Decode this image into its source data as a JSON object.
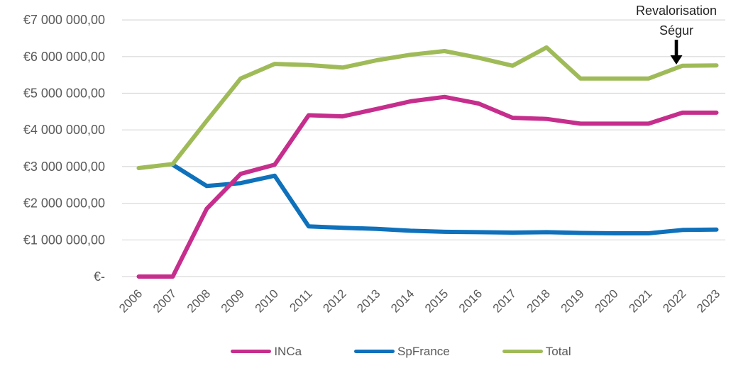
{
  "chart_data": {
    "type": "line",
    "title": "",
    "x_categories": [
      "2006",
      "2007",
      "2008",
      "2009",
      "2010",
      "2011",
      "2012",
      "2013",
      "2014",
      "2015",
      "2016",
      "2017",
      "2018",
      "2019",
      "2020",
      "2021",
      "2022",
      "2023"
    ],
    "series": [
      {
        "name": "INCa",
        "color": "#C62E8D",
        "values": [
          0,
          0,
          1850000,
          2800000,
          3050000,
          4400000,
          4370000,
          4570000,
          4780000,
          4900000,
          4720000,
          4330000,
          4300000,
          4170000,
          4170000,
          4170000,
          4470000,
          4470000
        ]
      },
      {
        "name": "SpFrance",
        "color": "#0F71BB",
        "values": [
          null,
          3050000,
          2470000,
          2550000,
          2750000,
          1370000,
          1330000,
          1300000,
          1250000,
          1220000,
          1210000,
          1200000,
          1210000,
          1190000,
          1180000,
          1180000,
          1270000,
          1280000
        ]
      },
      {
        "name": "Total",
        "color": "#9FBB58",
        "values": [
          2960000,
          3070000,
          4250000,
          5400000,
          5800000,
          5770000,
          5700000,
          5900000,
          6050000,
          6150000,
          5970000,
          5750000,
          6250000,
          5400000,
          5400000,
          5400000,
          5750000,
          5760000
        ]
      }
    ],
    "ylim": [
      0,
      7000000
    ],
    "ytick_step": 1000000,
    "ytick_labels": [
      "€-",
      "€1 000 000,00",
      "€2 000 000,00",
      "€3 000 000,00",
      "€4 000 000,00",
      "€5 000 000,00",
      "€6 000 000,00",
      "€7 000 000,00"
    ],
    "grid": "horizontal",
    "legend_position": "bottom",
    "annotation": {
      "line1": "Revalorisation",
      "line2": "Ségur",
      "arrow": "down",
      "target_series": "Total",
      "target_category": "2022"
    }
  },
  "style": {
    "axis_text_color": "#595959",
    "legend_text_color": "#595959",
    "annotation_text_color": "#1f1f1f",
    "gridline_color": "#D9D9D9",
    "arrow_color": "#000000",
    "background": "#FFFFFF"
  }
}
